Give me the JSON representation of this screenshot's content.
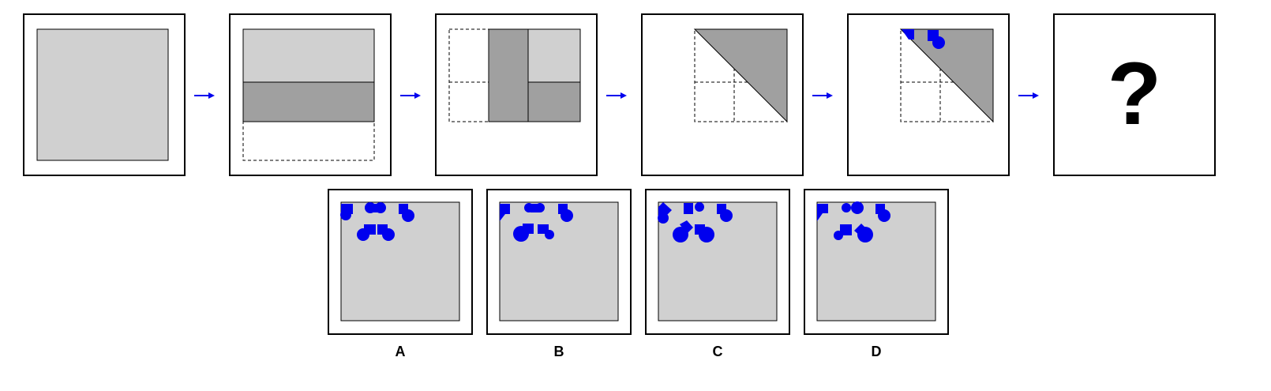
{
  "sequence": {
    "question_mark": "?",
    "frames": [
      {
        "id": "step-1",
        "description_shape": "full-square"
      },
      {
        "id": "step-2",
        "description_shape": "folded-horizontal"
      },
      {
        "id": "step-3",
        "description_shape": "folded-vertical"
      },
      {
        "id": "step-4",
        "description_shape": "folded-diagonal"
      },
      {
        "id": "step-5",
        "description_shape": "punched-diagonal"
      },
      {
        "id": "step-6",
        "description_shape": "question"
      }
    ]
  },
  "options": [
    {
      "label": "A"
    },
    {
      "label": "B"
    },
    {
      "label": "C"
    },
    {
      "label": "D"
    }
  ],
  "colors": {
    "paper": "#d0d0d0",
    "fold": "#a0a0a0",
    "punch": "#0000ee",
    "arrow": "#0000ee",
    "frame": "#000000"
  }
}
